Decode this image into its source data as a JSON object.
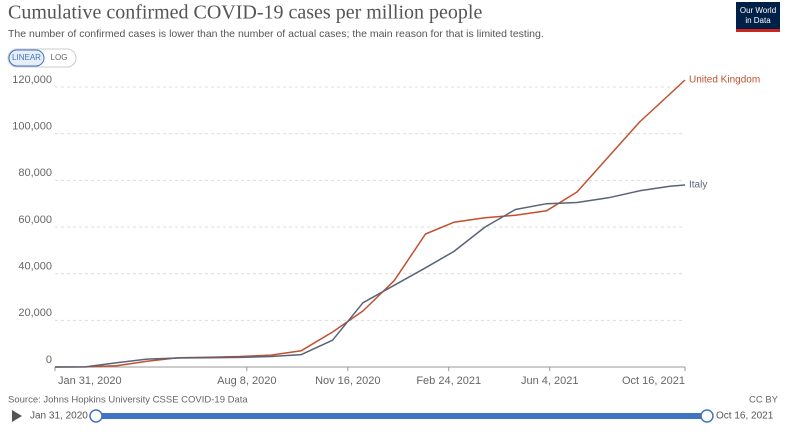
{
  "chart_data": {
    "type": "line",
    "title": "Cumulative confirmed COVID-19 cases per million people",
    "subtitle": "The number of confirmed cases is lower than the number of actual cases; the main reason for that is limited testing.",
    "scale_buttons": [
      "LINEAR",
      "LOG"
    ],
    "logo": [
      "Our World",
      "in Data"
    ],
    "source": "Source: Johns Hopkins University CSSE COVID-19 Data",
    "license": "CC BY",
    "timeline": {
      "start": "Jan 31, 2020",
      "end": "Oct 16, 2021"
    },
    "log_scale": false,
    "grid": true,
    "x": [
      "2020-01-31",
      "2020-03-01",
      "2020-04-01",
      "2020-05-01",
      "2020-06-01",
      "2020-07-01",
      "2020-08-01",
      "2020-09-01",
      "2020-10-01",
      "2020-11-01",
      "2020-12-01",
      "2021-01-01",
      "2021-02-01",
      "2021-03-01",
      "2021-04-01",
      "2021-05-01",
      "2021-06-01",
      "2021-07-01",
      "2021-08-01",
      "2021-09-01",
      "2021-10-01",
      "2021-10-16"
    ],
    "xlim": [
      "2020-01-31",
      "2021-10-16"
    ],
    "xticks": [
      {
        "value": "2020-01-31",
        "label": "Jan 31, 2020"
      },
      {
        "value": "2020-08-08",
        "label": "Aug 8, 2020"
      },
      {
        "value": "2020-11-16",
        "label": "Nov 16, 2020"
      },
      {
        "value": "2021-02-24",
        "label": "Feb 24, 2021"
      },
      {
        "value": "2021-06-04",
        "label": "Jun 4, 2021"
      },
      {
        "value": "2021-10-16",
        "label": "Oct 16, 2021"
      }
    ],
    "ylim": [
      0,
      120000
    ],
    "yticks": [
      0,
      {
        "value": 20000,
        "label": "20,000"
      },
      {
        "value": 40000,
        "label": "40,000"
      },
      {
        "value": 60000,
        "label": "60,000"
      },
      {
        "value": 80000,
        "label": "80,000"
      },
      {
        "value": 100000,
        "label": "100,000"
      },
      {
        "value": 120000,
        "label": "120,000"
      }
    ],
    "series": [
      {
        "name": "United Kingdom",
        "color": "#c1502e",
        "values": [
          0,
          50,
          500,
          2500,
          4000,
          4200,
          4500,
          5100,
          7000,
          15000,
          24000,
          37000,
          57000,
          62000,
          64000,
          65000,
          67000,
          75000,
          90000,
          105000,
          117000,
          123000
        ]
      },
      {
        "name": "Italy",
        "color": "#58637a",
        "values": [
          0,
          30,
          1800,
          3400,
          3850,
          4000,
          4100,
          4500,
          5300,
          11500,
          27500,
          35000,
          42500,
          49500,
          60000,
          67500,
          70000,
          70500,
          72500,
          75500,
          77500,
          78000
        ]
      }
    ]
  }
}
